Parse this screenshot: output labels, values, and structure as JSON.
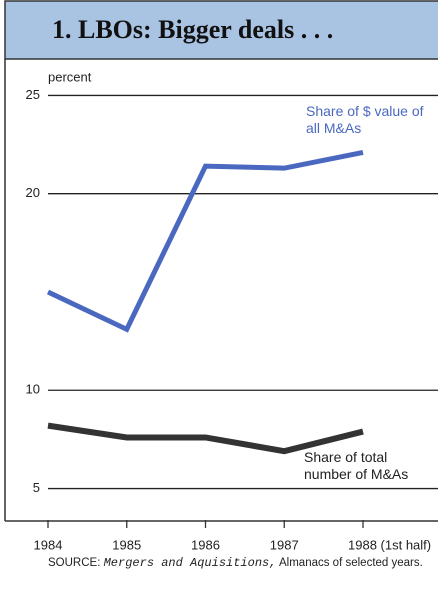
{
  "chart_data": {
    "type": "line",
    "title": "1. LBOs: Bigger deals . . .",
    "y_label": "percent",
    "categories": [
      "1984",
      "1985",
      "1986",
      "1987",
      "1988 (1st half)"
    ],
    "series": [
      {
        "name": "Share of $ value of all M&As",
        "color": "#4a68c0",
        "values": [
          15.0,
          13.1,
          21.4,
          21.3,
          22.1
        ]
      },
      {
        "name": "Share of total number of M&As",
        "color": "#333333",
        "values": [
          8.2,
          7.6,
          7.6,
          6.9,
          7.9
        ]
      }
    ],
    "ylim": [
      3.4,
      26.7
    ],
    "yticks": [
      5,
      10,
      20,
      25
    ],
    "grid": true,
    "source": {
      "prefix": "SOURCE:",
      "title": "Mergers and Aquisitions,",
      "rest": "Almanacs of selected years."
    }
  }
}
